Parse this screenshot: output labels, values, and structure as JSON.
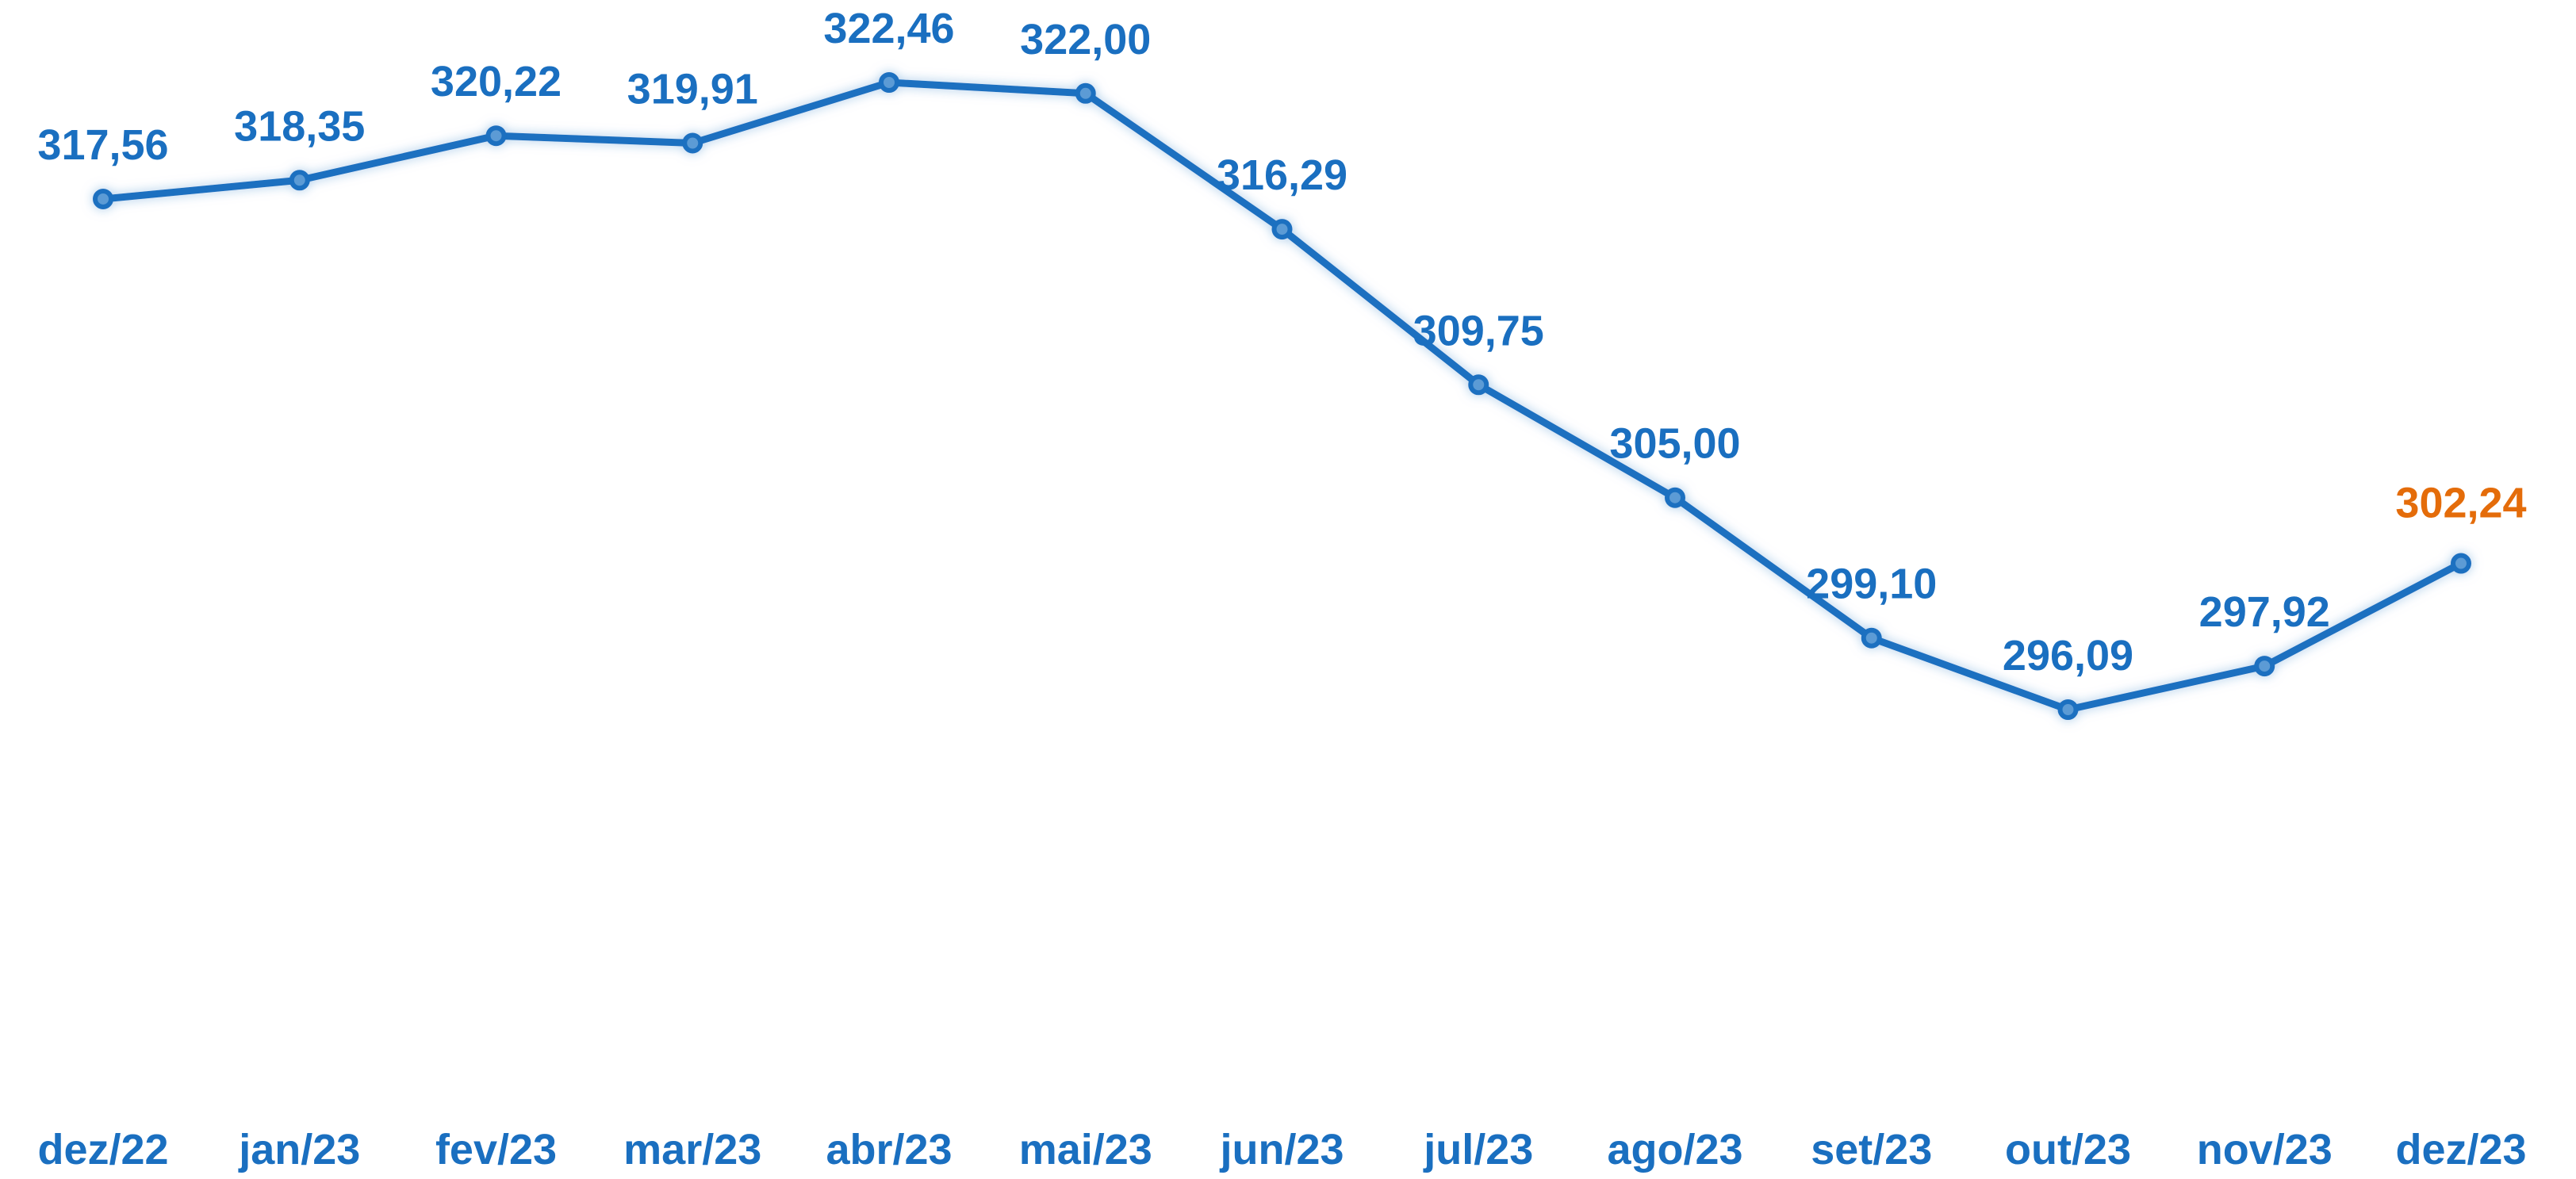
{
  "chart_data": {
    "type": "line",
    "categories": [
      "dez/22",
      "jan/23",
      "fev/23",
      "mar/23",
      "abr/23",
      "mai/23",
      "jun/23",
      "jul/23",
      "ago/23",
      "set/23",
      "out/23",
      "nov/23",
      "dez/23"
    ],
    "values": [
      317.56,
      318.35,
      320.22,
      319.91,
      322.46,
      322.0,
      316.29,
      309.75,
      305.0,
      299.1,
      296.09,
      297.92,
      302.24
    ],
    "value_labels": [
      "317,56",
      "318,35",
      "320,22",
      "319,91",
      "322,46",
      "322,00",
      "316,29",
      "309,75",
      "305,00",
      "299,10",
      "296,09",
      "297,92",
      "302,24"
    ],
    "color": "#1a6fc0",
    "last_label_color": "#e46c0a"
  }
}
